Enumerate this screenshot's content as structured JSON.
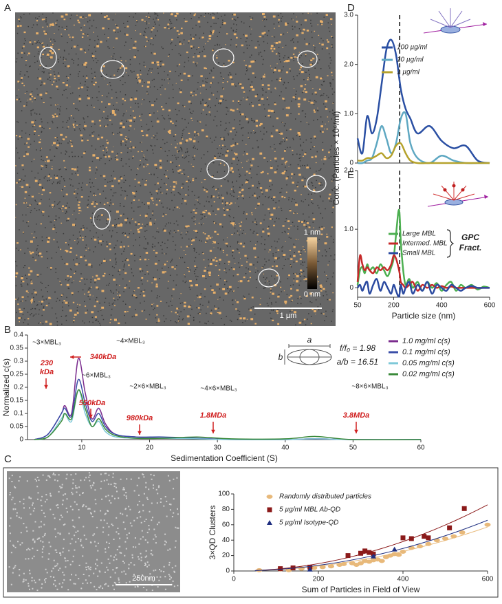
{
  "panel_labels": [
    "A",
    "B",
    "C",
    "D",
    "E"
  ],
  "afm_image": {
    "colorbar_max": "1 nm",
    "colorbar_min": "0 nm",
    "scale_bar": "1 µm"
  },
  "sem_image": {
    "scale_bar": "250nm"
  },
  "chart_data": [
    {
      "type": "line",
      "ylabel": "Conc. (Particles × 10⁶/ml)",
      "x": [
        50,
        70,
        90,
        110,
        130,
        150,
        170,
        190,
        210,
        230,
        250,
        270,
        300,
        350,
        400,
        450,
        500,
        550,
        600
      ],
      "xlim": [
        50,
        600
      ],
      "ylim": [
        0,
        3
      ],
      "yticks": [
        0,
        {
          "value": 1,
          "label": "1.0"
        },
        {
          "value": 2,
          "label": "2.0"
        },
        {
          "value": 3,
          "label": "3.0"
        }
      ],
      "vline": 225,
      "series": [
        {
          "name": "100 µg/ml",
          "color": "#2a4fa3",
          "values": [
            0.5,
            0.2,
            0.95,
            0.6,
            0.9,
            1.6,
            2.3,
            2.5,
            2.2,
            1.5,
            1.1,
            0.9,
            0.6,
            0.75,
            0.45,
            0.3,
            0.35,
            0.05,
            0.0
          ]
        },
        {
          "name": "10 µg/ml",
          "color": "#5fa8c2",
          "values": [
            0.0,
            0.0,
            0.05,
            0.1,
            0.4,
            0.75,
            0.5,
            0.2,
            0.4,
            0.9,
            1.0,
            0.4,
            0.1,
            0.0,
            0.15,
            0.05,
            0.0,
            0.0,
            0.0
          ]
        },
        {
          "name": "1 µg/ml",
          "color": "#b5a22c",
          "values": [
            0.05,
            0.05,
            0.1,
            0.1,
            0.15,
            0.2,
            0.1,
            0.15,
            0.35,
            0.4,
            0.2,
            0.05,
            0.0,
            0.0,
            0.0,
            0.0,
            0.0,
            0.0,
            0.0
          ]
        }
      ]
    },
    {
      "type": "line",
      "xlabel": "Particle size (nm)",
      "x": [
        50,
        60,
        70,
        80,
        90,
        100,
        115,
        130,
        145,
        160,
        175,
        190,
        200,
        210,
        220,
        225,
        230,
        240,
        250,
        265,
        280,
        300,
        320,
        340,
        360,
        380,
        400,
        420,
        440,
        460,
        480,
        500,
        525,
        550,
        575,
        600
      ],
      "xlim": [
        50,
        600
      ],
      "ylim": [
        -0.16,
        2
      ],
      "xticks": [
        50,
        200,
        400,
        600
      ],
      "yticks": [
        0,
        {
          "value": 1,
          "label": "1.0"
        },
        {
          "value": 2,
          "label": "2.0"
        }
      ],
      "vline": 225,
      "legend_title": [
        "GPC",
        "Fract."
      ],
      "series": [
        {
          "name": "Large MBL",
          "color": "#4caf50",
          "values": [
            0.05,
            0.3,
            0.35,
            0.25,
            0.4,
            0.3,
            0.35,
            0.25,
            0.4,
            0.3,
            0.2,
            0.35,
            0.5,
            0.9,
            1.3,
            1.25,
            0.8,
            0.3,
            0.05,
            0.15,
            0.0,
            0.1,
            -0.05,
            0.1,
            0.0,
            0.08,
            -0.05,
            0.05,
            0.1,
            -0.05,
            0.05,
            0.0,
            0.05,
            -0.03,
            0.02,
            0.0
          ]
        },
        {
          "name": "Intermed. MBL",
          "color": "#c62828",
          "values": [
            0.1,
            0.55,
            0.4,
            0.3,
            0.35,
            0.3,
            0.25,
            0.35,
            0.3,
            0.35,
            0.3,
            0.4,
            0.55,
            0.5,
            0.35,
            0.25,
            0.1,
            0.05,
            0.0,
            0.05,
            0.1,
            -0.05,
            0.05,
            0.0,
            0.05,
            0.0,
            0.03,
            0.0,
            0.02,
            0.0,
            0.0,
            0.0,
            0.0,
            0.0,
            0.0,
            0.0
          ]
        },
        {
          "name": "Small MBL",
          "color": "#2b4aa0",
          "values": [
            0.0,
            0.05,
            -0.05,
            0.05,
            0.1,
            -0.1,
            0.05,
            0.15,
            -0.05,
            0.1,
            0.0,
            -0.1,
            0.05,
            -0.05,
            -0.15,
            -0.1,
            0.05,
            -0.1,
            0.0,
            0.1,
            -0.1,
            0.05,
            -0.05,
            0.1,
            -0.1,
            0.05,
            0.0,
            -0.05,
            0.05,
            0.0,
            -0.05,
            0.0,
            0.03,
            0.0,
            0.0,
            0.0
          ]
        }
      ]
    },
    {
      "type": "line",
      "xlabel": "Sedimentation Coefficient (S)",
      "ylabel": "Normalized c(s)",
      "x": [
        3,
        5,
        7,
        7.5,
        8.5,
        9.5,
        10.5,
        11.5,
        12.5,
        13.5,
        15,
        18,
        22,
        27,
        32,
        40,
        44.5,
        50,
        60
      ],
      "xlim": [
        2,
        60
      ],
      "ylim": [
        0,
        0.4
      ],
      "xticks": [
        10,
        20,
        30,
        40,
        50,
        60
      ],
      "yticks": [
        0,
        0.05,
        0.1,
        0.15,
        0.2,
        0.25,
        0.3,
        0.35,
        0.4
      ],
      "annotations": [
        "~3×MBL₃",
        "230",
        "kDa",
        "340kDa",
        "~4×MBL₃",
        "~6×MBL₃",
        "550kDa",
        "~2×6×MBL₃",
        "980kDa",
        "~4×6×MBL₃",
        "1.8MDa",
        "~8×6×MBL₃",
        "3.8MDa",
        "f/f₀ = 1.98",
        "a/b = 16.51",
        "a",
        "b"
      ],
      "series": [
        {
          "name": "1.0 mg/ml c(s)",
          "color": "#7b2d8e",
          "values": [
            0,
            0.02,
            0.1,
            0.13,
            0.1,
            0.31,
            0.18,
            0.08,
            0.12,
            0.06,
            0.02,
            0.01,
            0.005,
            0.005,
            0,
            0,
            0.003,
            0,
            0
          ]
        },
        {
          "name": "0.1 mg/ml c(s)",
          "color": "#3b4fa8",
          "values": [
            0,
            0.02,
            0.1,
            0.12,
            0.09,
            0.23,
            0.14,
            0.07,
            0.1,
            0.05,
            0.02,
            0.01,
            0.01,
            0.005,
            0,
            0,
            0.003,
            0,
            0
          ]
        },
        {
          "name": "0.05 mg/ml c(s)",
          "color": "#7ec8d8",
          "values": [
            0,
            0.01,
            0.08,
            0.1,
            0.07,
            0.19,
            0.1,
            0.05,
            0.07,
            0.03,
            0.01,
            0.005,
            0.005,
            0.003,
            0,
            0,
            0.003,
            0,
            0
          ]
        },
        {
          "name": "0.02 mg/ml c(s)",
          "color": "#3a8a3a",
          "values": [
            0,
            0.01,
            0.07,
            0.1,
            0.08,
            0.19,
            0.12,
            0.05,
            0.08,
            0.04,
            0.015,
            0.005,
            0.005,
            0.01,
            0.003,
            0.003,
            0.012,
            0,
            0
          ]
        }
      ]
    },
    {
      "type": "scatter",
      "xlabel": "Sum of Particles in Field of View",
      "ylabel": "3×QD Clusters",
      "xlim": [
        0,
        600
      ],
      "ylim": [
        0,
        100
      ],
      "xticks": [
        0,
        200,
        400,
        600
      ],
      "yticks": [
        0,
        20,
        40,
        60,
        80,
        100
      ],
      "series": [
        {
          "name": "Randomly distributed particles",
          "color": "#e8b97a",
          "marker": "circle",
          "x": [
            60,
            110,
            130,
            160,
            190,
            210,
            230,
            250,
            260,
            280,
            290,
            300,
            310,
            320,
            330,
            340,
            350,
            360,
            370,
            380,
            390,
            400,
            420,
            440,
            460,
            480,
            500,
            520,
            540,
            600
          ],
          "values": [
            1,
            2,
            1,
            3,
            4,
            5,
            6,
            8,
            9,
            10,
            8,
            10,
            13,
            12,
            14,
            15,
            13,
            18,
            20,
            22,
            21,
            25,
            30,
            32,
            35,
            40,
            42,
            45,
            50,
            60
          ]
        },
        {
          "name": "5 µg/ml MBL Ab-QD",
          "color": "#8b1a1a",
          "marker": "square",
          "x": [
            110,
            140,
            180,
            270,
            300,
            310,
            320,
            330,
            400,
            420,
            450,
            460,
            510,
            545
          ],
          "values": [
            3,
            4,
            5,
            20,
            23,
            26,
            24,
            22,
            43,
            42,
            45,
            43,
            56,
            81
          ]
        },
        {
          "name": "5 µg/ml Isotype-QD",
          "color": "#1f2f80",
          "marker": "triangle",
          "x": [
            180,
            330,
            380
          ],
          "values": [
            2,
            19,
            28
          ]
        }
      ]
    }
  ]
}
